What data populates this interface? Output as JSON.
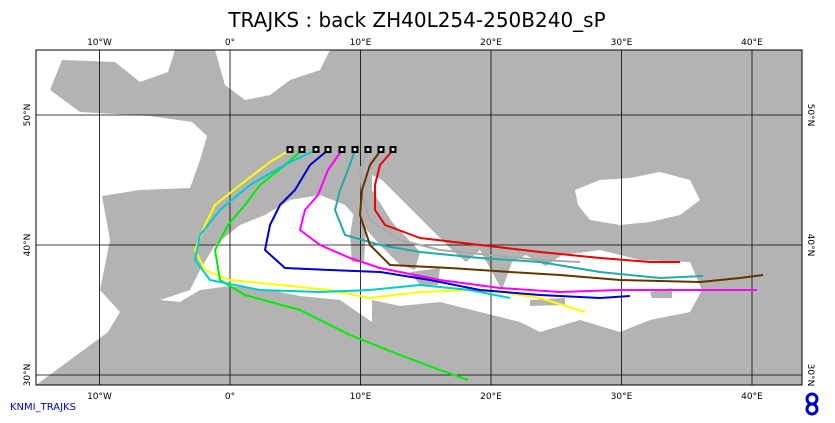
{
  "map": {
    "title": "TRAJKS : back ZH40L254-250B240_sP",
    "lon_ticks": [
      {
        "value": -10,
        "label": "10°W"
      },
      {
        "value": 0,
        "label": "0°"
      },
      {
        "value": 10,
        "label": "10°E"
      },
      {
        "value": 20,
        "label": "20°E"
      },
      {
        "value": 30,
        "label": "30°E"
      },
      {
        "value": 40,
        "label": "40°E"
      }
    ],
    "lat_ticks": [
      {
        "value": 50,
        "label": "50°N"
      },
      {
        "value": 40,
        "label": "40°N"
      },
      {
        "value": 30,
        "label": "30°N"
      }
    ],
    "footer": "KNMI_TRAJKS"
  }
}
